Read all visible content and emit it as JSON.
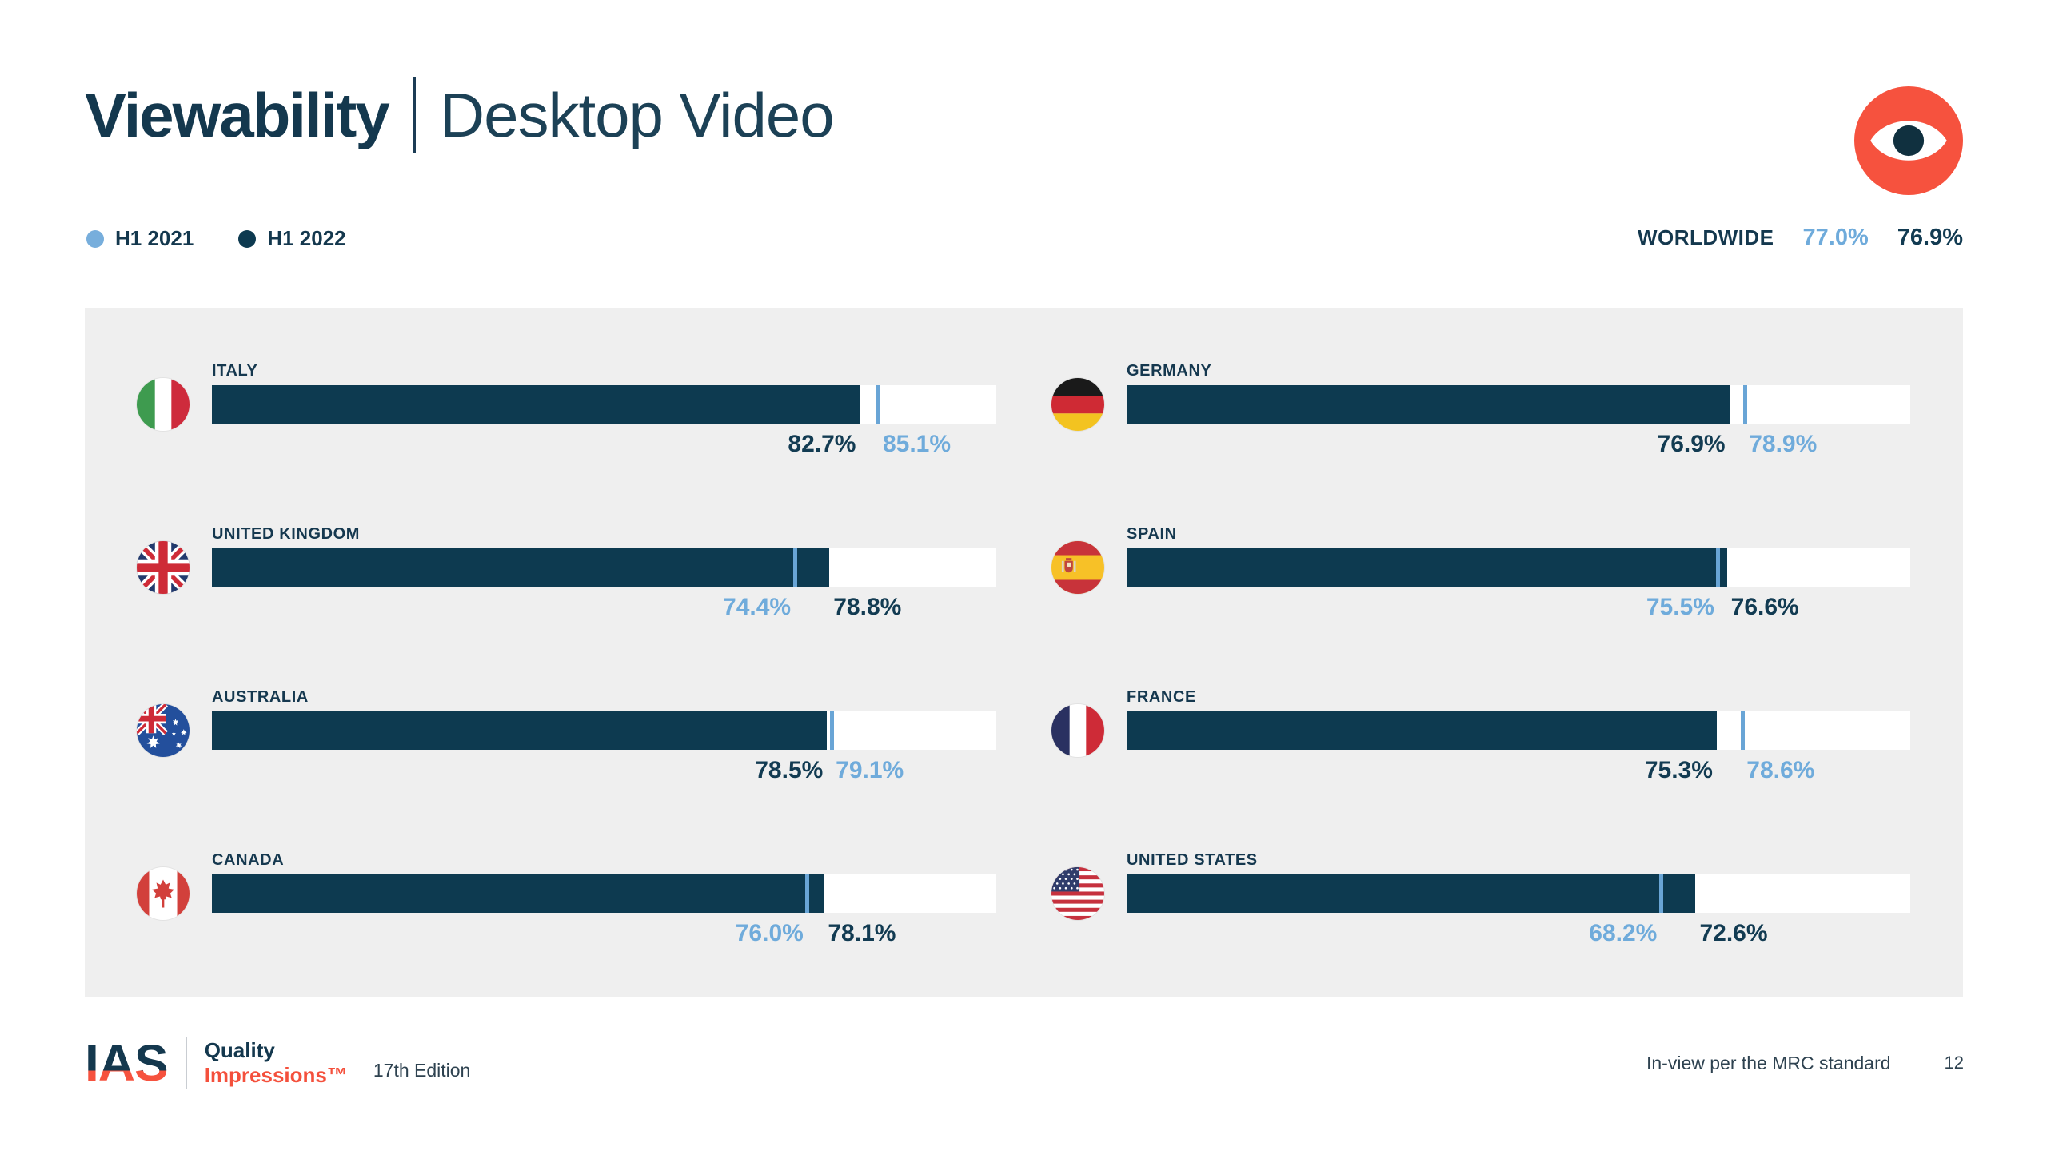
{
  "header": {
    "title": "Viewability",
    "subtitle": "Desktop Video",
    "badge_icon": "eye-icon"
  },
  "legend": [
    {
      "label": "H1 2021",
      "color": "#77AEDC"
    },
    {
      "label": "H1 2022",
      "color": "#0D3A50"
    }
  ],
  "worldwide": {
    "label": "WORLDWIDE"
  },
  "chart_data": {
    "type": "bar",
    "title": "Viewability | Desktop Video",
    "unit": "%",
    "axis_range": [
      0,
      100
    ],
    "series_names": [
      "H1 2021",
      "H1 2022"
    ],
    "colors": {
      "h1_2021": "#77AEDC",
      "h1_2022": "#0D3A50",
      "track": "#FFFFFF",
      "panel": "#EFEFEF"
    },
    "worldwide": {
      "h1_2021": 77.0,
      "h1_2022": 76.9
    },
    "countries": [
      {
        "name": "ITALY",
        "flag": "italy",
        "h1_2021": 85.1,
        "h1_2022": 82.7
      },
      {
        "name": "GERMANY",
        "flag": "germany",
        "h1_2021": 78.9,
        "h1_2022": 76.9
      },
      {
        "name": "UNITED KINGDOM",
        "flag": "uk",
        "h1_2021": 74.4,
        "h1_2022": 78.8
      },
      {
        "name": "SPAIN",
        "flag": "spain",
        "h1_2021": 75.5,
        "h1_2022": 76.6
      },
      {
        "name": "AUSTRALIA",
        "flag": "australia",
        "h1_2021": 79.1,
        "h1_2022": 78.5
      },
      {
        "name": "FRANCE",
        "flag": "france",
        "h1_2021": 78.6,
        "h1_2022": 75.3
      },
      {
        "name": "CANADA",
        "flag": "canada",
        "h1_2021": 76.0,
        "h1_2022": 78.1
      },
      {
        "name": "UNITED STATES",
        "flag": "us",
        "h1_2021": 68.2,
        "h1_2022": 72.6
      }
    ]
  },
  "footer": {
    "logo": "IAS",
    "logo_tagline_line1": "Quality",
    "logo_tagline_line2": "Impressions™",
    "edition": "17th Edition",
    "note": "In-view per the MRC standard",
    "page_number": "12"
  }
}
